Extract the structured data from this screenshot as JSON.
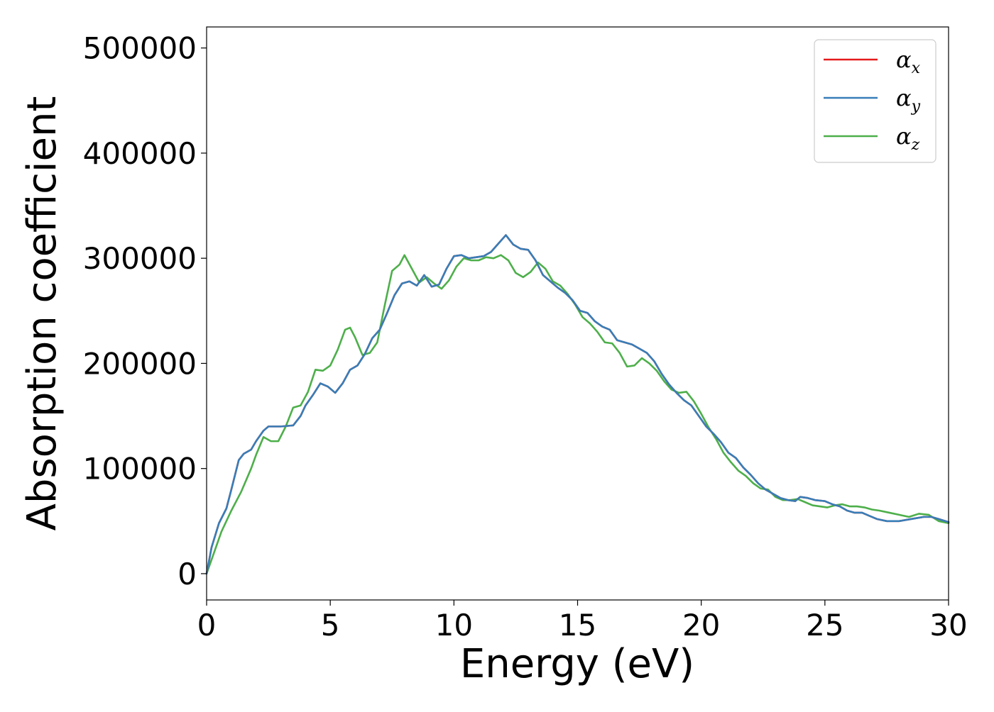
{
  "chart_data": {
    "type": "line",
    "title": "",
    "xlabel": "Energy (eV)",
    "ylabel": "Absorption coefficient",
    "xlim": [
      0,
      30
    ],
    "ylim": [
      -25000,
      520000
    ],
    "xticks": [
      0,
      5,
      10,
      15,
      20,
      25,
      30
    ],
    "yticks": [
      0,
      100000,
      200000,
      300000,
      400000,
      500000
    ],
    "xtick_labels": [
      "0",
      "5",
      "10",
      "15",
      "20",
      "25",
      "30"
    ],
    "ytick_labels": [
      "0",
      "100000",
      "200000",
      "300000",
      "400000",
      "500000"
    ],
    "grid": false,
    "legend": "top-right",
    "legend_entries": [
      {
        "symbol": "α",
        "subscript": "x"
      },
      {
        "symbol": "α",
        "subscript": "y"
      },
      {
        "symbol": "α",
        "subscript": "z"
      }
    ],
    "colors": {
      "alpha_x": "#e41a1c",
      "alpha_y": "#377eb8",
      "alpha_z": "#4daf4a"
    },
    "series": [
      {
        "key": "alpha_x",
        "x": [
          0,
          0.2,
          0.5,
          0.8,
          1.0,
          1.3,
          1.5,
          1.8,
          2.0,
          2.3,
          2.5,
          3.0,
          3.5,
          3.8,
          4.0,
          4.3,
          4.6,
          4.9,
          5.2,
          5.5,
          5.8,
          6.1,
          6.4,
          6.7,
          7.0,
          7.3,
          7.6,
          7.9,
          8.2,
          8.5,
          8.8,
          9.1,
          9.4,
          9.7,
          10.0,
          10.3,
          10.6,
          10.9,
          11.2,
          11.5,
          11.8,
          12.1,
          12.4,
          12.7,
          13.0,
          13.3,
          13.6,
          13.9,
          14.2,
          14.5,
          14.8,
          15.1,
          15.4,
          15.7,
          16.0,
          16.3,
          16.6,
          16.9,
          17.2,
          17.5,
          17.8,
          18.1,
          18.4,
          18.7,
          19.0,
          19.3,
          19.6,
          19.9,
          20.2,
          20.5,
          20.8,
          21.1,
          21.4,
          21.7,
          22.0,
          22.3,
          22.6,
          22.9,
          23.2,
          23.5,
          23.8,
          24.0,
          24.3,
          24.6,
          25.0,
          25.3,
          25.6,
          25.9,
          26.2,
          26.5,
          26.8,
          27.1,
          27.5,
          28.0,
          28.5,
          29.0,
          29.3,
          29.6,
          30.0
        ],
        "y": [
          0,
          25000,
          48000,
          62000,
          80000,
          108000,
          114000,
          118000,
          126000,
          136000,
          140000,
          140000,
          141000,
          150000,
          160000,
          170000,
          181000,
          178000,
          172000,
          181000,
          194000,
          198000,
          209000,
          224000,
          232000,
          248000,
          265000,
          276000,
          278000,
          274000,
          284000,
          273000,
          275000,
          290000,
          302000,
          303000,
          300000,
          301000,
          302000,
          306000,
          314000,
          322000,
          313000,
          309000,
          308000,
          298000,
          284000,
          278000,
          272000,
          267000,
          260000,
          250000,
          248000,
          240000,
          235000,
          232000,
          222000,
          220000,
          218000,
          214000,
          210000,
          202000,
          190000,
          180000,
          172000,
          165000,
          160000,
          150000,
          140000,
          133000,
          125000,
          115000,
          110000,
          101000,
          94000,
          86000,
          80000,
          76000,
          72000,
          70000,
          69000,
          73000,
          72000,
          70000,
          69000,
          66000,
          64000,
          60000,
          58000,
          58000,
          55000,
          52000,
          50000,
          50000,
          52000,
          54000,
          54000,
          52000,
          49000
        ]
      },
      {
        "key": "alpha_y",
        "x": [
          0,
          0.2,
          0.5,
          0.8,
          1.0,
          1.3,
          1.5,
          1.8,
          2.0,
          2.3,
          2.5,
          3.0,
          3.5,
          3.8,
          4.0,
          4.3,
          4.6,
          4.9,
          5.2,
          5.5,
          5.8,
          6.1,
          6.4,
          6.7,
          7.0,
          7.3,
          7.6,
          7.9,
          8.2,
          8.5,
          8.8,
          9.1,
          9.4,
          9.7,
          10.0,
          10.3,
          10.6,
          10.9,
          11.2,
          11.5,
          11.8,
          12.1,
          12.4,
          12.7,
          13.0,
          13.3,
          13.6,
          13.9,
          14.2,
          14.5,
          14.8,
          15.1,
          15.4,
          15.7,
          16.0,
          16.3,
          16.6,
          16.9,
          17.2,
          17.5,
          17.8,
          18.1,
          18.4,
          18.7,
          19.0,
          19.3,
          19.6,
          19.9,
          20.2,
          20.5,
          20.8,
          21.1,
          21.4,
          21.7,
          22.0,
          22.3,
          22.6,
          22.9,
          23.2,
          23.5,
          23.8,
          24.0,
          24.3,
          24.6,
          25.0,
          25.3,
          25.6,
          25.9,
          26.2,
          26.5,
          26.8,
          27.1,
          27.5,
          28.0,
          28.5,
          29.0,
          29.3,
          29.6,
          30.0
        ],
        "y": [
          0,
          25000,
          48000,
          62000,
          80000,
          108000,
          114000,
          118000,
          126000,
          136000,
          140000,
          140000,
          141000,
          150000,
          160000,
          170000,
          181000,
          178000,
          172000,
          181000,
          194000,
          198000,
          209000,
          224000,
          232000,
          248000,
          265000,
          276000,
          278000,
          274000,
          284000,
          273000,
          275000,
          290000,
          302000,
          303000,
          300000,
          301000,
          302000,
          306000,
          314000,
          322000,
          313000,
          309000,
          308000,
          298000,
          284000,
          278000,
          272000,
          267000,
          260000,
          250000,
          248000,
          240000,
          235000,
          232000,
          222000,
          220000,
          218000,
          214000,
          210000,
          202000,
          190000,
          180000,
          172000,
          165000,
          160000,
          150000,
          140000,
          133000,
          125000,
          115000,
          110000,
          101000,
          94000,
          86000,
          80000,
          76000,
          72000,
          70000,
          69000,
          73000,
          72000,
          70000,
          69000,
          66000,
          64000,
          60000,
          58000,
          58000,
          55000,
          52000,
          50000,
          50000,
          52000,
          54000,
          54000,
          52000,
          49000
        ]
      },
      {
        "key": "alpha_z",
        "x": [
          0,
          0.3,
          0.6,
          1.0,
          1.4,
          1.8,
          2.0,
          2.3,
          2.6,
          2.9,
          3.2,
          3.5,
          3.8,
          4.1,
          4.4,
          4.7,
          5.0,
          5.3,
          5.6,
          5.8,
          6.0,
          6.3,
          6.6,
          6.9,
          7.2,
          7.5,
          7.8,
          8.0,
          8.3,
          8.6,
          8.9,
          9.2,
          9.5,
          9.8,
          10.1,
          10.4,
          10.7,
          11.0,
          11.3,
          11.6,
          11.9,
          12.2,
          12.5,
          12.8,
          13.1,
          13.4,
          13.7,
          14.0,
          14.3,
          14.6,
          14.9,
          15.2,
          15.5,
          15.8,
          16.1,
          16.4,
          16.7,
          17.0,
          17.3,
          17.6,
          17.9,
          18.2,
          18.5,
          18.8,
          19.1,
          19.4,
          19.7,
          20.0,
          20.3,
          20.6,
          20.9,
          21.2,
          21.5,
          21.8,
          22.1,
          22.4,
          22.7,
          23.0,
          23.3,
          23.6,
          23.9,
          24.2,
          24.5,
          24.8,
          25.1,
          25.4,
          25.7,
          26.0,
          26.3,
          26.6,
          26.9,
          27.2,
          27.6,
          28.0,
          28.4,
          28.8,
          29.2,
          29.6,
          30.0
        ],
        "y": [
          0,
          20000,
          40000,
          60000,
          78000,
          100000,
          113000,
          130000,
          126000,
          126000,
          140000,
          158000,
          160000,
          173000,
          194000,
          193000,
          198000,
          213000,
          232000,
          234000,
          225000,
          208000,
          210000,
          220000,
          255000,
          288000,
          294000,
          303000,
          290000,
          277000,
          282000,
          276000,
          271000,
          279000,
          292000,
          300000,
          298000,
          298000,
          301000,
          300000,
          303000,
          298000,
          286000,
          282000,
          287000,
          296000,
          290000,
          278000,
          274000,
          266000,
          256000,
          244000,
          238000,
          230000,
          220000,
          219000,
          210000,
          197000,
          198000,
          205000,
          200000,
          193000,
          183000,
          175000,
          172000,
          173000,
          164000,
          152000,
          139000,
          128000,
          115000,
          106000,
          98000,
          93000,
          86000,
          81000,
          80000,
          73000,
          70000,
          70000,
          71000,
          68000,
          65000,
          64000,
          63000,
          65000,
          66000,
          64000,
          64000,
          63000,
          61000,
          60000,
          58000,
          56000,
          54000,
          57000,
          56000,
          50000,
          48000
        ]
      }
    ]
  }
}
